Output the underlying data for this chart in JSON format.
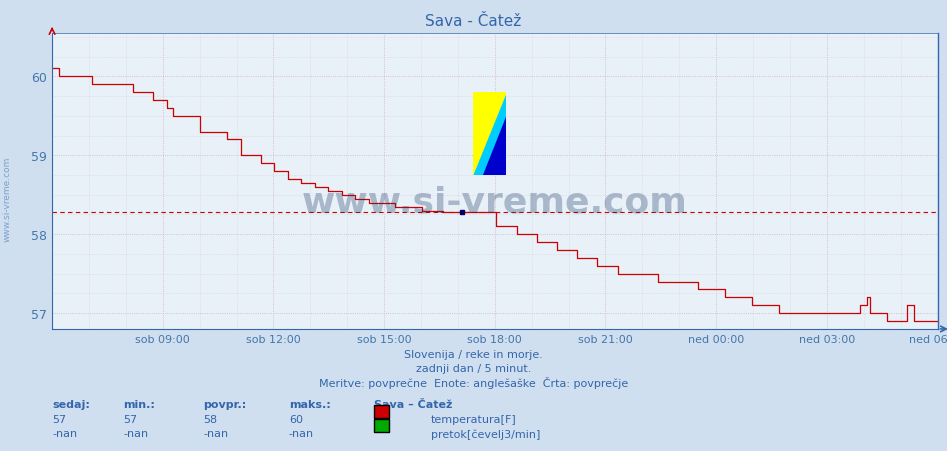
{
  "title": "Sava - Čatež",
  "background_color": "#d0dff0",
  "plot_bg_color": "#e8f0f8",
  "grid_color_major": "#c0d0e8",
  "grid_color_minor": "#d0dff0",
  "line_color": "#cc0000",
  "avg_line_color": "#cc0000",
  "avg_line_value": 58.28,
  "ylabel_color": "#4477aa",
  "xlabel_color": "#4477aa",
  "title_color": "#3366aa",
  "text_color": "#3366aa",
  "ymin": 56.8,
  "ymax": 60.55,
  "yticks": [
    57,
    58,
    59,
    60
  ],
  "watermark_text": "www.si-vreme.com",
  "watermark_color": "#1a3560",
  "watermark_alpha": 0.3,
  "subtitle1": "Slovenija / reke in morje.",
  "subtitle2": "zadnji dan / 5 minut.",
  "subtitle3": "Meritve: povprečne  Enote: anglešaške  Črta: povprečje",
  "footer_sedaj_label": "sedaj:",
  "footer_min_label": "min.:",
  "footer_povpr_label": "povpr.:",
  "footer_maks_label": "maks.:",
  "footer_sedaj": "57",
  "footer_min": "57",
  "footer_povpr": "58",
  "footer_maks": "60",
  "footer_sedaj2": "-nan",
  "footer_min2": "-nan",
  "footer_povpr2": "-nan",
  "footer_maks2": "-nan",
  "legend_title": "Sava – Čatež",
  "legend_label1": "temperatura[F]",
  "legend_label2": "pretok[čevelj3/min]",
  "legend_color1": "#cc0000",
  "legend_color2": "#00aa00",
  "xtick_labels": [
    "sob 09:00",
    "sob 12:00",
    "sob 15:00",
    "sob 18:00",
    "sob 21:00",
    "ned 00:00",
    "ned 03:00",
    "ned 06:00"
  ],
  "sidebar_text": "www.si-vreme.com",
  "temp_data": [
    60.1,
    60.1,
    60.0,
    60.0,
    60.0,
    60.0,
    60.0,
    60.0,
    60.0,
    60.0,
    60.0,
    60.0,
    59.9,
    59.9,
    59.9,
    59.9,
    59.9,
    59.9,
    59.9,
    59.9,
    59.9,
    59.9,
    59.9,
    59.9,
    59.8,
    59.8,
    59.8,
    59.8,
    59.8,
    59.8,
    59.7,
    59.7,
    59.7,
    59.7,
    59.6,
    59.6,
    59.5,
    59.5,
    59.5,
    59.5,
    59.5,
    59.5,
    59.5,
    59.5,
    59.3,
    59.3,
    59.3,
    59.3,
    59.3,
    59.3,
    59.3,
    59.3,
    59.2,
    59.2,
    59.2,
    59.2,
    59.0,
    59.0,
    59.0,
    59.0,
    59.0,
    59.0,
    58.9,
    58.9,
    58.9,
    58.9,
    58.8,
    58.8,
    58.8,
    58.8,
    58.7,
    58.7,
    58.7,
    58.7,
    58.65,
    58.65,
    58.65,
    58.65,
    58.6,
    58.6,
    58.6,
    58.6,
    58.55,
    58.55,
    58.55,
    58.55,
    58.5,
    58.5,
    58.5,
    58.5,
    58.45,
    58.45,
    58.45,
    58.45,
    58.4,
    58.4,
    58.4,
    58.4,
    58.4,
    58.4,
    58.4,
    58.4,
    58.35,
    58.35,
    58.35,
    58.35,
    58.35,
    58.35,
    58.35,
    58.35,
    58.3,
    58.3,
    58.3,
    58.3,
    58.3,
    58.3,
    58.28,
    58.28,
    58.28,
    58.28,
    58.28,
    58.28,
    58.28,
    58.28,
    58.28,
    58.28,
    58.28,
    58.28,
    58.28,
    58.28,
    58.28,
    58.28,
    58.1,
    58.1,
    58.1,
    58.1,
    58.1,
    58.1,
    58.0,
    58.0,
    58.0,
    58.0,
    58.0,
    58.0,
    57.9,
    57.9,
    57.9,
    57.9,
    57.9,
    57.9,
    57.8,
    57.8,
    57.8,
    57.8,
    57.8,
    57.8,
    57.7,
    57.7,
    57.7,
    57.7,
    57.7,
    57.7,
    57.6,
    57.6,
    57.6,
    57.6,
    57.6,
    57.6,
    57.5,
    57.5,
    57.5,
    57.5,
    57.5,
    57.5,
    57.5,
    57.5,
    57.5,
    57.5,
    57.5,
    57.5,
    57.4,
    57.4,
    57.4,
    57.4,
    57.4,
    57.4,
    57.4,
    57.4,
    57.4,
    57.4,
    57.4,
    57.4,
    57.3,
    57.3,
    57.3,
    57.3,
    57.3,
    57.3,
    57.3,
    57.3,
    57.2,
    57.2,
    57.2,
    57.2,
    57.2,
    57.2,
    57.2,
    57.2,
    57.1,
    57.1,
    57.1,
    57.1,
    57.1,
    57.1,
    57.1,
    57.1,
    57.0,
    57.0,
    57.0,
    57.0,
    57.0,
    57.0,
    57.0,
    57.0,
    57.0,
    57.0,
    57.0,
    57.0,
    57.0,
    57.0,
    57.0,
    57.0,
    57.0,
    57.0,
    57.0,
    57.0,
    57.0,
    57.0,
    57.0,
    57.0,
    57.1,
    57.1,
    57.2,
    57.0,
    57.0,
    57.0,
    57.0,
    57.0,
    56.9,
    56.9,
    56.9,
    56.9,
    56.9,
    56.9,
    57.1,
    57.1,
    56.9,
    56.9,
    56.9,
    56.9,
    56.9,
    56.9,
    56.9,
    56.9
  ]
}
